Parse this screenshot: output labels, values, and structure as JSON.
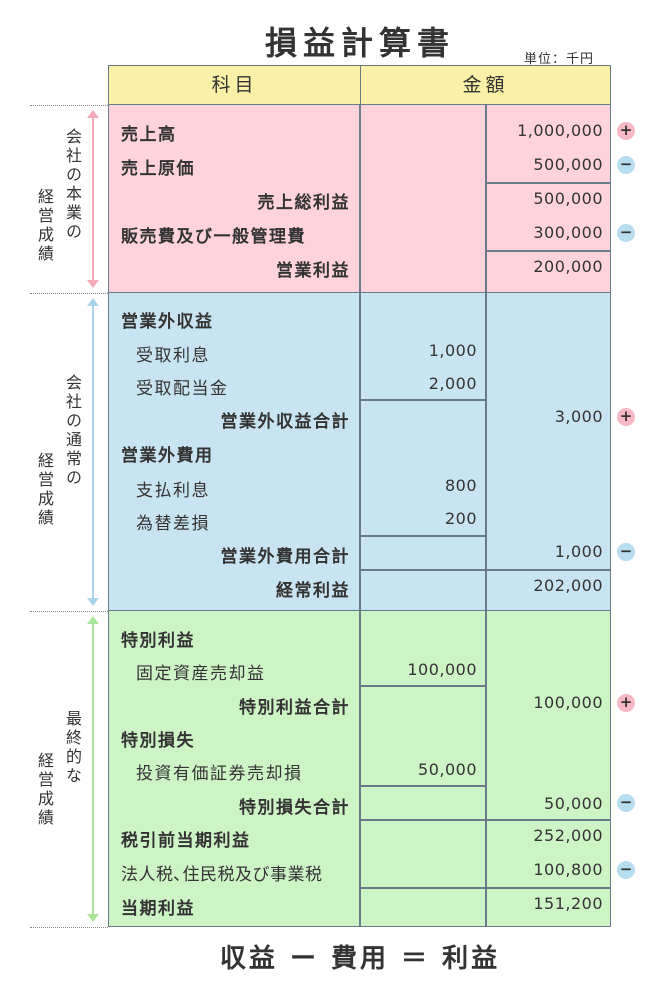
{
  "title": "損益計算書",
  "unit": "単位：千円",
  "header": {
    "col_item": "科目",
    "col_amount": "金額"
  },
  "side_labels": {
    "s1_a": "会社の本業の",
    "s1_b": "経営成績",
    "s2_a": "会社の通常の",
    "s2_b": "経営成績",
    "s3_a": "最終的な",
    "s3_b": "経営成績"
  },
  "rows": {
    "r1": {
      "label": "売上高",
      "amount": "1,000,000"
    },
    "r2": {
      "label": "売上原価",
      "amount": "500,000"
    },
    "r3": {
      "label": "売上総利益",
      "amount": "500,000"
    },
    "r4": {
      "label": "販売費及び一般管理費",
      "amount": "300,000"
    },
    "r5": {
      "label": "営業利益",
      "amount": "200,000"
    },
    "r6": {
      "label": "営業外収益"
    },
    "r7": {
      "label": "受取利息",
      "detail": "1,000"
    },
    "r8": {
      "label": "受取配当金",
      "detail": "2,000"
    },
    "r9": {
      "label": "営業外収益合計",
      "amount": "3,000"
    },
    "r10": {
      "label": "営業外費用"
    },
    "r11": {
      "label": "支払利息",
      "detail": "800"
    },
    "r12": {
      "label": "為替差損",
      "detail": "200"
    },
    "r13": {
      "label": "営業外費用合計",
      "amount": "1,000"
    },
    "r14": {
      "label": "経常利益",
      "amount": "202,000"
    },
    "r15": {
      "label": "特別利益"
    },
    "r16": {
      "label": "固定資産売却益",
      "detail": "100,000"
    },
    "r17": {
      "label": "特別利益合計",
      "amount": "100,000"
    },
    "r18": {
      "label": "特別損失"
    },
    "r19": {
      "label": "投資有価証券売却損",
      "detail": "50,000"
    },
    "r20": {
      "label": "特別損失合計",
      "amount": "50,000"
    },
    "r21": {
      "label": "税引前当期利益",
      "amount": "252,000"
    },
    "r22": {
      "label": "法人税､住民税及び事業税",
      "amount": "100,800"
    },
    "r23": {
      "label": "当期利益",
      "amount": "151,200"
    }
  },
  "signs": {
    "plus": "+",
    "minus": "−"
  },
  "formula": "収益 ー 費用 ＝ 利益",
  "colors": {
    "header": "#faf0a8",
    "section1": "#fed3dc",
    "section2": "#c8e4f2",
    "section3": "#cdf4c5",
    "line": "#6a7a8a"
  }
}
